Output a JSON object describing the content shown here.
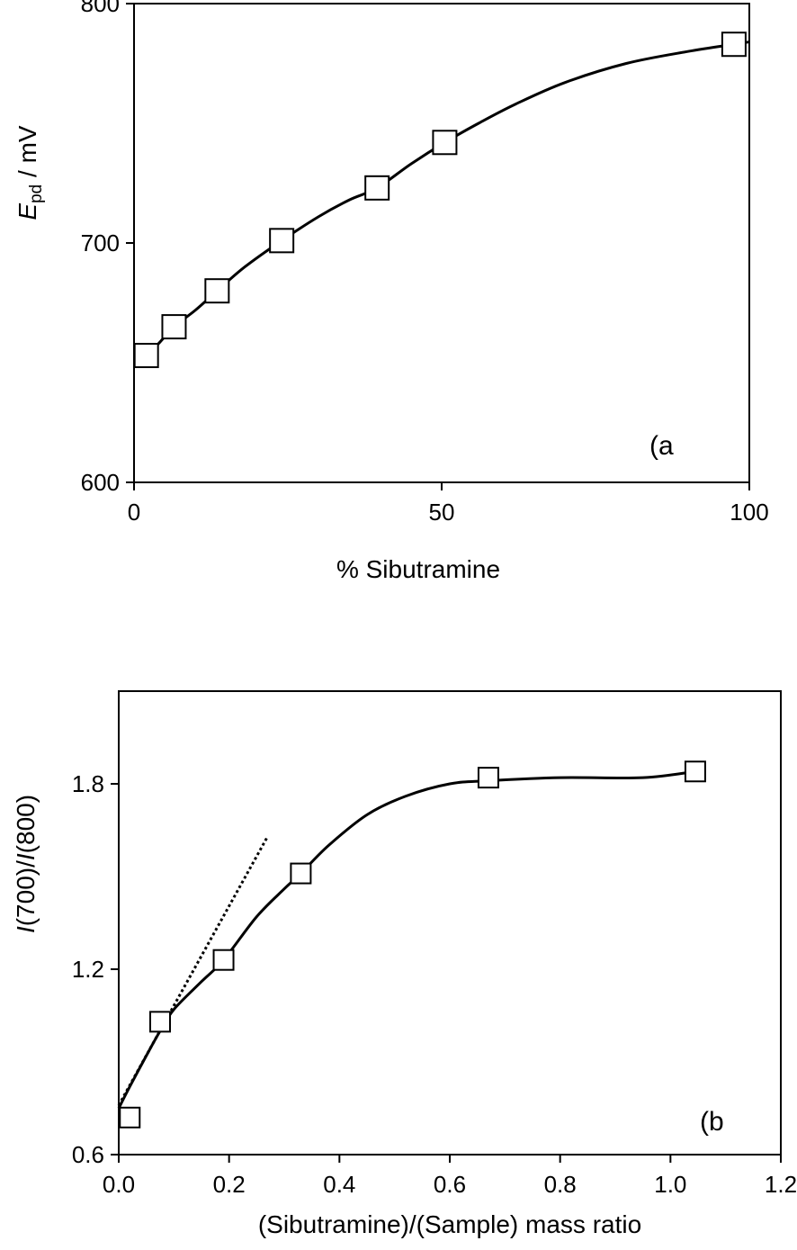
{
  "chart_data": [
    {
      "type": "line",
      "panel_label": "(a",
      "xlabel": "% Sibutramine",
      "ylabel_main": "E",
      "ylabel_sub": "pd",
      "ylabel_rest": " / mV",
      "xlim": [
        0,
        100
      ],
      "ylim": [
        600,
        800
      ],
      "xticks": [
        0,
        50,
        100
      ],
      "xtick_labels": [
        "0",
        "50",
        "100"
      ],
      "yticks": [
        600,
        700,
        800
      ],
      "ytick_labels": [
        "600",
        "700",
        "800"
      ],
      "grid": false,
      "legend": "none",
      "points": {
        "x": [
          2,
          6.5,
          13.5,
          24,
          39.5,
          50.5,
          97.5
        ],
        "y": [
          653,
          665,
          680,
          701,
          723,
          742,
          783
        ]
      },
      "fit": {
        "x": [
          0,
          2,
          4,
          6.5,
          10,
          13.5,
          18,
          24,
          30,
          35,
          39.5,
          45,
          50.5,
          56,
          62,
          70,
          80,
          90,
          97.5,
          100
        ],
        "y": [
          650,
          653,
          658,
          665,
          672,
          680,
          690,
          701,
          711,
          718,
          723,
          733,
          742,
          750,
          758,
          767,
          775,
          780,
          783,
          784
        ]
      }
    },
    {
      "type": "line",
      "panel_label": "(b",
      "xlabel": "(Sibutramine)/(Sample) mass ratio",
      "ylabel_italic": "I",
      "ylabel_mid": "(700)/",
      "ylabel_italic2": "I",
      "ylabel_end": "(800)",
      "xlim": [
        0,
        1.2
      ],
      "ylim": [
        0.6,
        2.1
      ],
      "xticks": [
        0,
        0.2,
        0.4,
        0.6,
        0.8,
        1.0,
        1.2
      ],
      "xtick_labels": [
        "0.0",
        "0.2",
        "0.4",
        "0.6",
        "0.8",
        "1.0",
        "1.2"
      ],
      "yticks": [
        0.6,
        1.2,
        1.8
      ],
      "ytick_labels": [
        "0.6",
        "1.2",
        "1.8"
      ],
      "grid": false,
      "legend": "none",
      "points": {
        "x": [
          0.02,
          0.075,
          0.19,
          0.33,
          0.67,
          1.045
        ],
        "y": [
          0.72,
          1.03,
          1.23,
          1.51,
          1.82,
          1.84
        ]
      },
      "fit": {
        "x": [
          0.0,
          0.02,
          0.05,
          0.075,
          0.1,
          0.15,
          0.19,
          0.25,
          0.3,
          0.33,
          0.38,
          0.45,
          0.52,
          0.6,
          0.67,
          0.8,
          0.95,
          1.045
        ],
        "y": [
          0.75,
          0.82,
          0.92,
          1.0,
          1.07,
          1.16,
          1.23,
          1.37,
          1.46,
          1.51,
          1.6,
          1.7,
          1.76,
          1.8,
          1.81,
          1.82,
          1.82,
          1.84
        ]
      },
      "trend": {
        "x": [
          0.0,
          0.27
        ],
        "y": [
          0.76,
          1.63
        ]
      }
    }
  ]
}
